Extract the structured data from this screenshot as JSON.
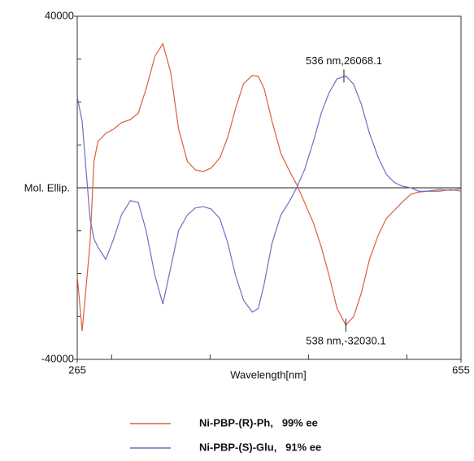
{
  "chart_data": {
    "type": "line",
    "x_label": "Wavelength[nm]",
    "y_label": "Mol. Ellip.",
    "xlim": [
      265,
      655
    ],
    "xticks": [
      265,
      655
    ],
    "x_minor_ticks": [
      300,
      400,
      500,
      600
    ],
    "ylim": [
      -40000,
      40000
    ],
    "yticks": [
      40000,
      -40000
    ],
    "y_minor_ticks": [
      30000,
      20000,
      10000,
      -10000,
      -20000,
      -30000
    ],
    "reference_line": 0,
    "x": [
      265,
      270,
      278,
      282,
      286,
      294,
      302,
      310,
      319,
      327,
      335,
      344,
      352,
      360,
      368,
      377,
      385,
      393,
      401,
      410,
      418,
      426,
      434,
      443,
      449,
      455,
      463,
      472,
      480,
      488,
      496,
      505,
      513,
      521,
      529,
      538,
      546,
      554,
      562,
      571,
      579,
      587,
      595,
      604,
      612,
      620,
      633,
      645,
      655
    ],
    "series": [
      {
        "name": "Ni-PBP-(R)-Ph,   99% ee",
        "color": "#d9603b",
        "values": [
          -20500,
          -33400,
          -12900,
          6100,
          10800,
          12700,
          13700,
          15200,
          15900,
          17400,
          23100,
          30700,
          33600,
          26900,
          13700,
          6100,
          4200,
          3800,
          4600,
          7000,
          11800,
          18600,
          24300,
          26200,
          26000,
          23100,
          15500,
          8000,
          4200,
          800,
          -3400,
          -8200,
          -13800,
          -20500,
          -28100,
          -32000,
          -30000,
          -24300,
          -16700,
          -11000,
          -7200,
          -5300,
          -3400,
          -1500,
          -1000,
          -800,
          -800,
          -400,
          -800
        ]
      },
      {
        "name": "Ni-PBP-(S)-Glu,   91% ee",
        "color": "#6e6ec8",
        "values": [
          21200,
          15500,
          -7200,
          -11900,
          -13800,
          -16700,
          -11900,
          -6300,
          -3000,
          -3400,
          -10000,
          -20500,
          -27100,
          -18600,
          -10000,
          -6300,
          -4700,
          -4400,
          -4900,
          -7200,
          -12900,
          -20500,
          -26200,
          -29000,
          -28100,
          -22400,
          -12900,
          -6300,
          -3400,
          0,
          4200,
          10800,
          17400,
          22200,
          25400,
          26100,
          24100,
          19300,
          12700,
          7000,
          3200,
          1300,
          400,
          0,
          -800,
          -800,
          -400,
          -600,
          -200
        ]
      }
    ],
    "annotations": [
      {
        "text": "536 nm,26068.1",
        "x": 536,
        "y": 26068.1
      },
      {
        "text": "538 nm,-32030.1",
        "x": 538,
        "y": -32030.1
      }
    ]
  }
}
